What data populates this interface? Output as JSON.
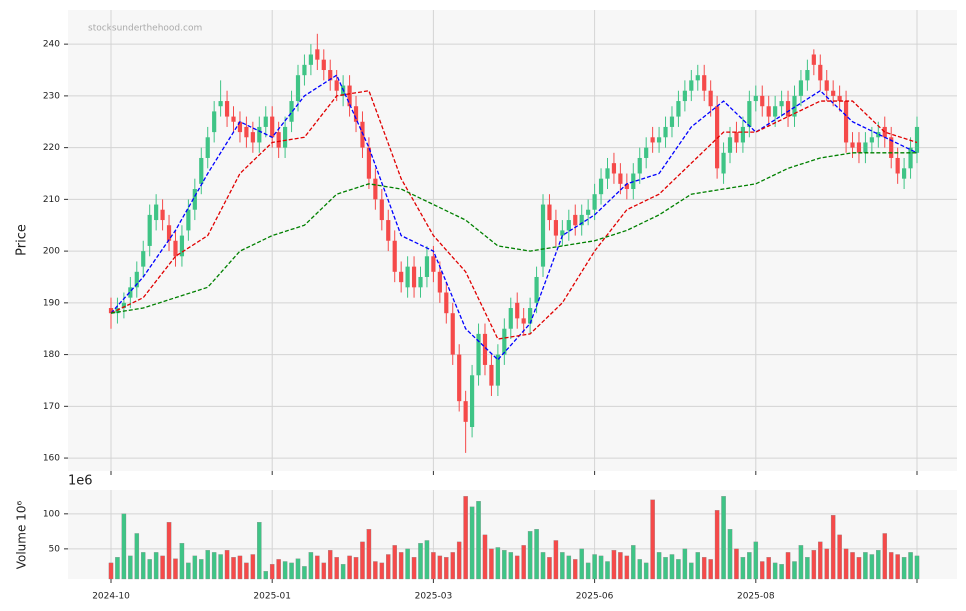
{
  "chart_data": {
    "type": "candlestick",
    "watermark": "stocksunderthehood.com",
    "ylabel": "Price",
    "ylim": [
      157.5,
      246.6
    ],
    "yticks": [
      160,
      170,
      180,
      190,
      200,
      210,
      220,
      230,
      240
    ],
    "grid": true,
    "up_color": "#3fc486",
    "down_color": "#f54a4a",
    "categories": [
      "2024-10",
      null,
      null,
      null,
      null,
      null,
      null,
      null,
      null,
      null,
      null,
      null,
      null,
      null,
      null,
      null,
      null,
      null,
      null,
      null,
      null,
      null,
      null,
      null,
      null,
      "2025-01",
      null,
      null,
      null,
      null,
      null,
      null,
      null,
      null,
      null,
      null,
      null,
      null,
      null,
      null,
      null,
      null,
      null,
      null,
      null,
      null,
      null,
      null,
      null,
      null,
      "2025-03",
      null,
      null,
      null,
      null,
      null,
      null,
      null,
      null,
      null,
      null,
      null,
      null,
      null,
      null,
      null,
      null,
      null,
      null,
      null,
      null,
      null,
      null,
      null,
      null,
      "2025-06",
      null,
      null,
      null,
      null,
      null,
      null,
      null,
      null,
      null,
      null,
      null,
      null,
      null,
      null,
      null,
      null,
      null,
      null,
      null,
      null,
      null,
      null,
      null,
      null,
      "2025-08",
      null,
      null,
      null,
      null,
      null,
      null,
      null,
      null,
      null,
      null,
      null,
      null,
      null,
      null,
      null,
      null,
      null,
      null,
      null,
      null,
      null,
      null,
      null,
      null,
      null
    ],
    "xticks": [
      0,
      25,
      50,
      75,
      100,
      125
    ],
    "open": [
      189,
      188,
      189,
      191,
      193,
      197,
      201,
      206,
      208,
      205,
      202,
      199,
      204,
      208,
      213,
      218,
      223,
      228,
      229,
      226,
      225,
      224,
      223,
      221,
      224,
      226,
      223,
      220,
      225,
      229,
      234,
      236,
      239,
      237,
      235,
      233,
      230,
      232,
      228,
      225,
      220,
      214,
      210,
      206,
      202,
      196,
      193,
      197,
      193,
      195,
      199,
      196,
      192,
      188,
      180,
      171,
      166,
      176,
      184,
      178,
      174,
      180,
      185,
      190,
      187,
      186,
      190,
      197,
      209,
      206,
      203,
      204,
      207,
      205,
      207,
      208,
      211,
      214,
      217,
      215,
      213,
      212,
      215,
      218,
      222,
      221,
      222,
      224,
      226,
      229,
      231,
      233,
      234,
      231,
      228,
      215,
      219,
      223,
      221,
      224,
      229,
      230,
      228,
      226,
      228,
      229,
      226,
      230,
      233,
      238,
      236,
      233,
      231,
      230,
      229,
      221,
      221,
      219,
      221,
      222,
      224,
      222,
      218,
      214,
      216,
      219
    ],
    "high": [
      191,
      191,
      192,
      195,
      198,
      202,
      209,
      211,
      210,
      207,
      204,
      205,
      210,
      214,
      220,
      224,
      229,
      233,
      231,
      228,
      227,
      226,
      225,
      226,
      228,
      228,
      225,
      226,
      231,
      236,
      238,
      240,
      242,
      239,
      237,
      235,
      234,
      234,
      230,
      227,
      222,
      216,
      212,
      208,
      204,
      198,
      199,
      199,
      197,
      201,
      201,
      198,
      194,
      190,
      182,
      173,
      178,
      186,
      186,
      180,
      182,
      187,
      191,
      192,
      189,
      191,
      197,
      211,
      211,
      208,
      206,
      208,
      209,
      209,
      210,
      213,
      216,
      218,
      219,
      217,
      215,
      217,
      220,
      222,
      224,
      224,
      226,
      228,
      231,
      233,
      235,
      236,
      236,
      233,
      230,
      221,
      224,
      225,
      226,
      231,
      232,
      232,
      230,
      230,
      231,
      231,
      232,
      235,
      237,
      239,
      238,
      235,
      233,
      232,
      231,
      223,
      223,
      223,
      224,
      225,
      226,
      224,
      220,
      218,
      222,
      226
    ],
    "low": [
      185,
      186,
      187,
      189,
      191,
      195,
      199,
      204,
      204,
      200,
      197,
      197,
      202,
      206,
      211,
      216,
      221,
      226,
      224,
      223,
      221,
      220,
      219,
      219,
      222,
      220,
      218,
      218,
      223,
      227,
      232,
      234,
      235,
      233,
      231,
      229,
      228,
      226,
      223,
      218,
      212,
      208,
      204,
      200,
      194,
      192,
      191,
      191,
      191,
      193,
      194,
      190,
      186,
      178,
      169,
      161,
      164,
      174,
      176,
      172,
      172,
      178,
      183,
      185,
      184,
      184,
      188,
      195,
      204,
      201,
      201,
      202,
      203,
      203,
      205,
      206,
      209,
      212,
      213,
      211,
      210,
      210,
      213,
      216,
      219,
      219,
      220,
      222,
      224,
      227,
      229,
      231,
      229,
      226,
      214,
      213,
      217,
      219,
      219,
      222,
      227,
      226,
      224,
      224,
      226,
      224,
      224,
      228,
      231,
      234,
      231,
      229,
      228,
      227,
      219,
      218,
      217,
      217,
      219,
      220,
      220,
      216,
      213,
      212,
      214,
      217
    ],
    "close": [
      188,
      189,
      190,
      193,
      196,
      200,
      207,
      209,
      206,
      202,
      199,
      203,
      208,
      212,
      218,
      222,
      227,
      229,
      226,
      225,
      223,
      222,
      221,
      224,
      226,
      222,
      220,
      224,
      229,
      234,
      236,
      238,
      237,
      235,
      233,
      231,
      232,
      228,
      225,
      220,
      214,
      210,
      206,
      202,
      196,
      194,
      197,
      193,
      195,
      199,
      196,
      192,
      188,
      180,
      171,
      167,
      176,
      184,
      178,
      174,
      180,
      185,
      189,
      187,
      186,
      189,
      195,
      209,
      206,
      203,
      204,
      206,
      205,
      207,
      208,
      211,
      214,
      216,
      215,
      213,
      212,
      215,
      218,
      220,
      221,
      222,
      224,
      226,
      229,
      231,
      233,
      234,
      231,
      228,
      216,
      219,
      222,
      221,
      224,
      229,
      230,
      228,
      226,
      228,
      229,
      226,
      230,
      233,
      235,
      236,
      233,
      231,
      230,
      229,
      221,
      220,
      219,
      221,
      222,
      223,
      222,
      218,
      215,
      216,
      220,
      224
    ],
    "moving_averages": [
      {
        "color": "#0000ff",
        "x": [
          0,
          5,
          10,
          15,
          20,
          25,
          30,
          35,
          40,
          45,
          50,
          55,
          60,
          65,
          70,
          75,
          80,
          85,
          90,
          95,
          100,
          105,
          110,
          115,
          120,
          125
        ],
        "values": [
          188,
          195,
          204,
          215,
          225,
          222,
          230,
          234,
          220,
          203,
          200,
          185,
          179,
          186,
          203,
          207,
          213,
          215,
          224,
          229,
          223,
          227,
          231,
          225,
          222,
          219
        ]
      },
      {
        "color": "#e00000",
        "x": [
          0,
          5,
          10,
          15,
          20,
          25,
          30,
          35,
          40,
          45,
          50,
          55,
          60,
          65,
          70,
          75,
          80,
          85,
          90,
          95,
          100,
          105,
          110,
          115,
          120,
          125
        ],
        "values": [
          188,
          191,
          199,
          203,
          215,
          221,
          222,
          230,
          231,
          214,
          203,
          196,
          183,
          184,
          190,
          200,
          208,
          211,
          217,
          223,
          223,
          226,
          229,
          229,
          223,
          221
        ]
      },
      {
        "color": "#008000",
        "x": [
          0,
          5,
          10,
          15,
          20,
          25,
          30,
          35,
          40,
          45,
          50,
          55,
          60,
          65,
          70,
          75,
          80,
          85,
          90,
          95,
          100,
          105,
          110,
          115,
          120,
          125
        ],
        "values": [
          188,
          189,
          191,
          193,
          200,
          203,
          205,
          211,
          213,
          212,
          209,
          206,
          201,
          200,
          201,
          202,
          204,
          207,
          211,
          212,
          213,
          216,
          218,
          219,
          219,
          219
        ]
      }
    ],
    "volume": {
      "ylabel": "Volume  10⁶",
      "offset_label": "1e6",
      "ylim": [
        7,
        134
      ],
      "yticks": [
        50,
        100
      ],
      "values": [
        30,
        38,
        100,
        40,
        72,
        45,
        35,
        45,
        40,
        88,
        36,
        58,
        30,
        40,
        35,
        48,
        45,
        42,
        48,
        38,
        40,
        30,
        42,
        88,
        18,
        28,
        35,
        32,
        30,
        36,
        25,
        45,
        40,
        30,
        48,
        38,
        28,
        40,
        38,
        60,
        78,
        32,
        30,
        42,
        55,
        45,
        50,
        38,
        58,
        62,
        45,
        40,
        38,
        45,
        60,
        125,
        110,
        118,
        70,
        50,
        52,
        48,
        45,
        40,
        55,
        75,
        78,
        45,
        38,
        62,
        45,
        40,
        35,
        50,
        30,
        42,
        40,
        32,
        48,
        45,
        40,
        55,
        35,
        30,
        120,
        45,
        38,
        42,
        35,
        50,
        30,
        45,
        38,
        35,
        105,
        125,
        78,
        50,
        38,
        45,
        60,
        32,
        38,
        30,
        28,
        45,
        32,
        55,
        38,
        48,
        60,
        50,
        98,
        70,
        50,
        45,
        38,
        45,
        42,
        48,
        72,
        45,
        42,
        38,
        45,
        40
      ]
    }
  }
}
